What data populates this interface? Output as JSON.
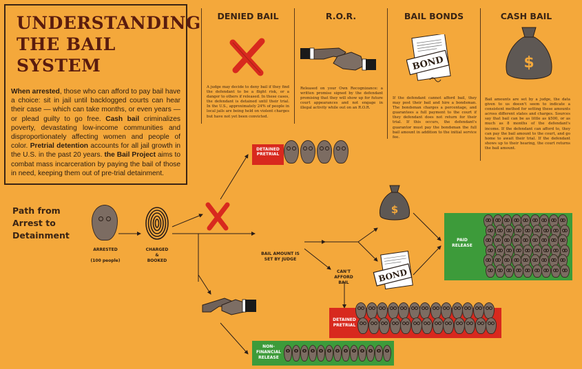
{
  "title": {
    "line1": "UNDERSTANDING",
    "line2": "THE BAIL SYSTEM"
  },
  "intro": {
    "p1_bold": "When arrested",
    "p1": ", those who can afford to pay bail have a choice: sit in jail until backlogged courts can hear their case — which can take months, or even years — or plead guilty to go free. ",
    "p2_bold": "Cash bail",
    "p2": " criminalizes poverty, devastating low-income communities and disproportionately affecting women and people of color. ",
    "p3_bold": "Pretrial detention",
    "p3": " accounts for all jail growth in the U.S. in the past 20 years. ",
    "p4_bold": "the Bail Project",
    "p4": " aims to combat mass incarceration by paying the bail of those in need, keeping them out of pre-trial detainment."
  },
  "columns": [
    {
      "heading": "DENIED BAIL",
      "icon": "red-x-icon",
      "text": "A judge may decide to deny bail if they find the defendant to be a flight risk, or a danger to others if released. In these cases, the defendant is detained until their trial. In the U.S., approximately 24% of people in local jails are being held on violent charges but have not yet been convicted."
    },
    {
      "heading": "R.O.R.",
      "icon": "handshake-icon",
      "text": "Released on your Own Recognizance: a written promise signed by the defendant promising that they will show up for future court appearances and not engage in illegal activity while out on an R.O.R."
    },
    {
      "heading": "BAIL BONDS",
      "icon": "bond-document-icon",
      "doc_label": "BOND",
      "text": "If the defendant cannot afford bail, they may post their bail and hire a bondsman. The bondsman charges a percentage, and guarantees a full payment to the court if they defendant does not return for their trial. If this occurs, the defendant's guarantor must pay the bondsman the full bail amount in addition to the initial service fee."
    },
    {
      "heading": "CASH BAIL",
      "icon": "money-bag-icon",
      "text": "Bail amounts are set by a judge, the data given to us doesn't seem to indicate a consistent method for setting these amounts across different states and charges. Sources say that bail can be as little as $500, or as much as 8 months of the defendant's income. If the defendant can afford to, they can pay the bail amount to the court, and go home to await their trial. If the defendant shows up to their hearing, the court returns the bail amount."
    }
  ],
  "path": {
    "title_line1": "Path from",
    "title_line2": "Arrest to",
    "title_line3": "Detainment",
    "arrested_label": "ARRESTED",
    "arrested_sub": "(100 people)",
    "charged_line1": "CHARGED",
    "charged_line2": "&",
    "charged_line3": "BOOKED",
    "bail_set_line1": "BAIL AMOUNT IS",
    "bail_set_line2": "SET BY JUDGE",
    "cant_afford_line1": "CAN'T",
    "cant_afford_line2": "AFFORD",
    "cant_afford_line3": "BAIL",
    "detained_top_line1": "DETAINED",
    "detained_top_line2": "PRETRIAL",
    "detained_bottom_line1": "DETAINED",
    "detained_bottom_line2": "PRETRIAL",
    "paid_line1": "PAID",
    "paid_line2": "RELEASE",
    "nonfin_line1": "NON-",
    "nonfin_line2": "FINANCIAL",
    "nonfin_line3": "RELEASE",
    "bond_label": "BOND",
    "dollar": "$"
  },
  "colors": {
    "background": "#f4a83b",
    "red": "#d8291e",
    "green": "#3d9b3a",
    "title": "#5a1c0e",
    "face": "#7c6c62"
  }
}
